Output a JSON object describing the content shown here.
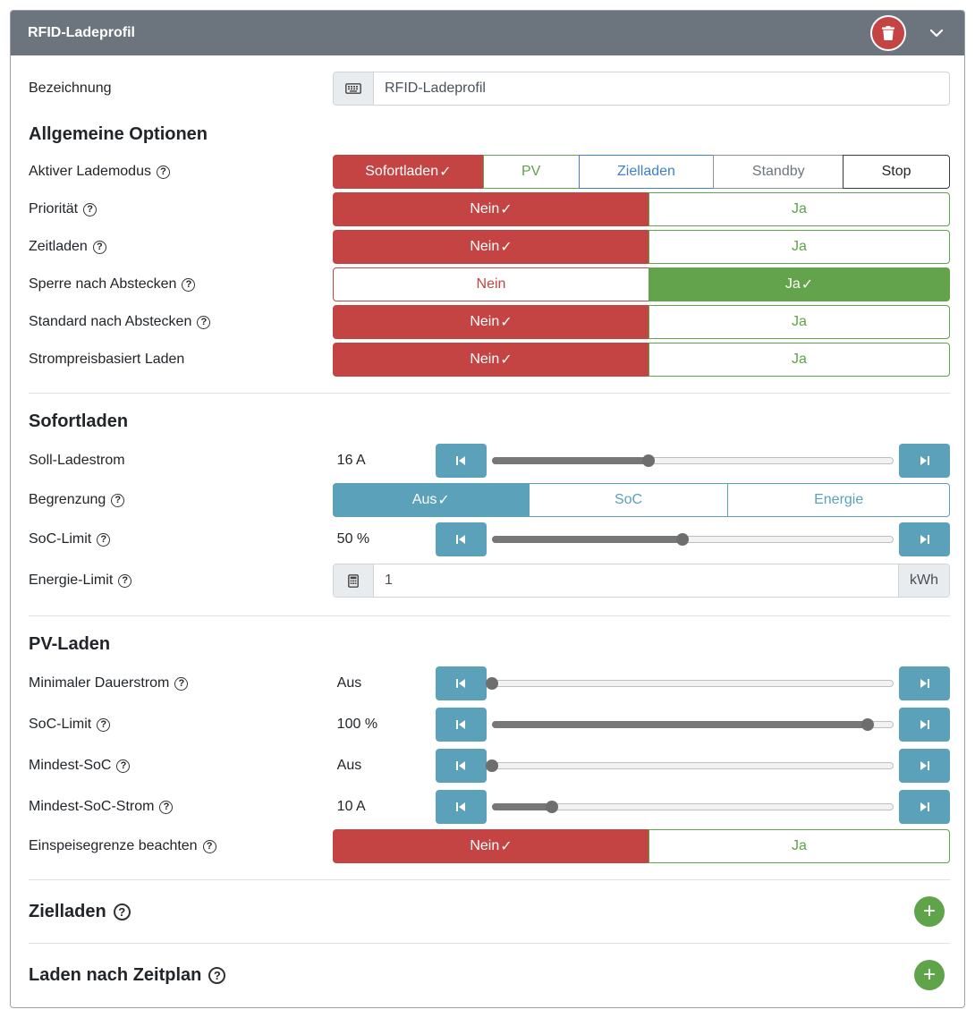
{
  "header": {
    "title": "RFID-Ladeprofil"
  },
  "bezeichnung": {
    "label": "Bezeichnung",
    "value": "RFID-Ladeprofil"
  },
  "allgemein": {
    "title": "Allgemeine Optionen",
    "lademodus": {
      "label": "Aktiver Lademodus",
      "options": [
        "Sofortladen",
        "PV",
        "Zielladen",
        "Standby",
        "Stop"
      ]
    },
    "prioritaet": {
      "label": "Priorität",
      "no": "Nein",
      "yes": "Ja"
    },
    "zeitladen": {
      "label": "Zeitladen",
      "no": "Nein",
      "yes": "Ja"
    },
    "sperre": {
      "label": "Sperre nach Abstecken",
      "no": "Nein",
      "yes": "Ja"
    },
    "standard": {
      "label": "Standard nach Abstecken",
      "no": "Nein",
      "yes": "Ja"
    },
    "strompreis": {
      "label": "Strompreisbasiert Laden",
      "no": "Nein",
      "yes": "Ja"
    }
  },
  "sofortladen": {
    "title": "Sofortladen",
    "soll": {
      "label": "Soll-Ladestrom",
      "value": "16 A",
      "level": 0.39
    },
    "begrenzung": {
      "label": "Begrenzung",
      "options": [
        "Aus",
        "SoC",
        "Energie"
      ]
    },
    "soc_limit": {
      "label": "SoC-Limit",
      "value": "50 %",
      "level": 0.475
    },
    "energie": {
      "label": "Energie-Limit",
      "value": "1",
      "unit": "kWh"
    }
  },
  "pvladen": {
    "title": "PV-Laden",
    "min_dauer": {
      "label": "Minimaler Dauerstrom",
      "value": "Aus",
      "level": 0.0
    },
    "soc_limit": {
      "label": "SoC-Limit",
      "value": "100 %",
      "level": 0.935
    },
    "mindest_soc": {
      "label": "Mindest-SoC",
      "value": "Aus",
      "level": 0.0
    },
    "mindest_soc_strom": {
      "label": "Mindest-SoC-Strom",
      "value": "10 A",
      "level": 0.15
    },
    "einspeise": {
      "label": "Einspeisegrenze beachten",
      "no": "Nein",
      "yes": "Ja"
    }
  },
  "zielladen": {
    "title": "Zielladen"
  },
  "zeitplan": {
    "title": "Laden nach Zeitplan"
  },
  "icons": {
    "check": "✓",
    "help": "?",
    "plus": "+"
  },
  "colors": {
    "header": "#6c757d",
    "danger": "#c44444",
    "success": "#5fa34a",
    "info": "#5ba1b9",
    "primary": "#3f7fcf"
  }
}
